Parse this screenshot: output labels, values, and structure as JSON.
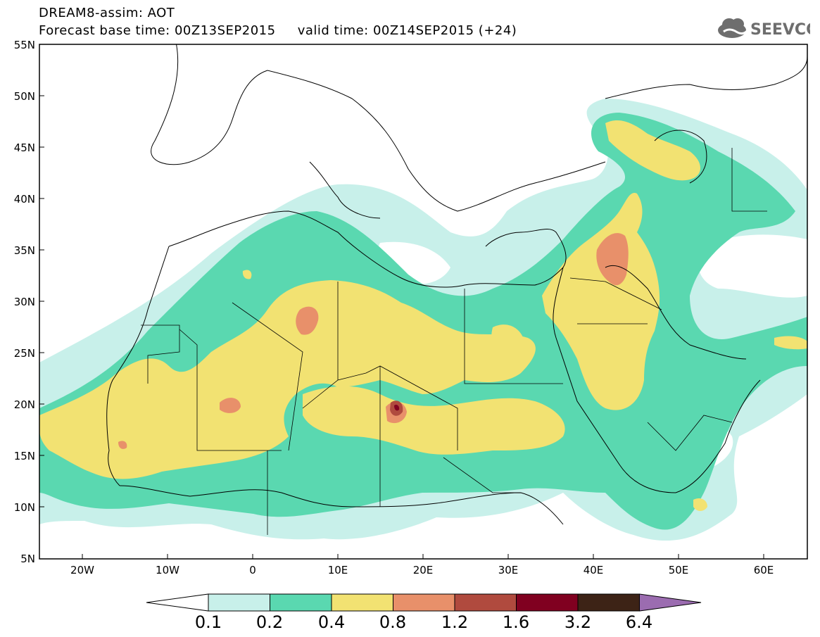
{
  "header": {
    "title_line1": "DREAM8-assim: AOT",
    "base_time_label": "Forecast base time: 00Z13SEP2015",
    "valid_time_label": "valid time: 00Z14SEP2015 (+24)",
    "logo_text": "SEEVCCC",
    "logo_icon": "cloud-icon"
  },
  "map": {
    "lat_ticks": [
      "55N",
      "50N",
      "45N",
      "40N",
      "35N",
      "30N",
      "25N",
      "20N",
      "15N",
      "10N",
      "5N"
    ],
    "lon_ticks": [
      "20W",
      "10W",
      "0",
      "10E",
      "20E",
      "30E",
      "40E",
      "50E",
      "60E"
    ]
  },
  "colorbar": {
    "labels": [
      "0.1",
      "0.2",
      "0.4",
      "0.8",
      "1.2",
      "1.6",
      "3.2",
      "6.4"
    ],
    "colors": [
      "#c8f0ea",
      "#5ad8b0",
      "#f2e272",
      "#e8906a",
      "#b04a3e",
      "#800020",
      "#3d2316",
      "#9b6cb0"
    ],
    "low_arrow_color": "#ffffff",
    "high_arrow_color": "#9b6cb0"
  },
  "legend_colors": {
    "aot_0_1": "#c8f0ea",
    "aot_0_2": "#5ad8b0",
    "aot_0_4": "#f2e272",
    "aot_0_8": "#e8906a",
    "aot_1_2": "#b04a3e",
    "aot_1_6": "#800020",
    "aot_3_2": "#3d2316"
  }
}
